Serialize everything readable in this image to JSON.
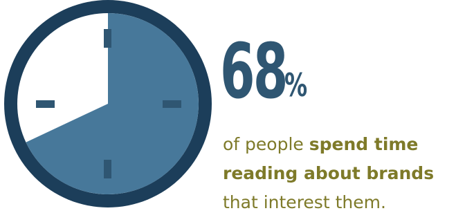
{
  "stat": {
    "value": "68",
    "unit": "%",
    "clock_portion_filled": 0.68
  },
  "caption": {
    "line1_plain": "of people ",
    "line1_bold": "spend time",
    "line2_bold": "reading about brands",
    "line3_plain": "that interest them."
  },
  "colors": {
    "ring": "#1c3e5a",
    "fill": "#47789a",
    "face": "#ffffff",
    "tick": "#2f5672",
    "number": "#2f5672",
    "caption": "#7e7a29"
  },
  "icons": {
    "clock": "clock-icon"
  }
}
